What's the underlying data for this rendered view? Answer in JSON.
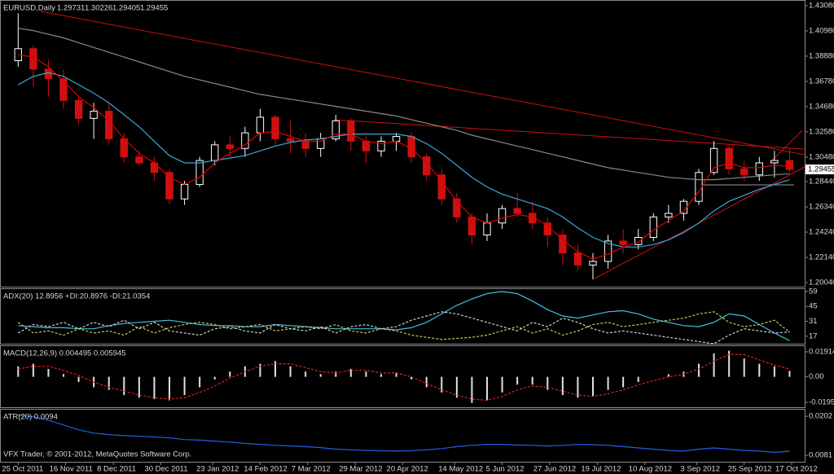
{
  "chart_data": [
    {
      "type": "candlestick",
      "title": "EURUSD,Daily",
      "last_bar": {
        "open": 1.29731,
        "high": 1.30226,
        "low": 1.29405,
        "close": 1.29455
      },
      "open": [
        1.385,
        1.395,
        1.378,
        1.37,
        1.352,
        1.337,
        1.343,
        1.32,
        1.305,
        1.3,
        1.292,
        1.27,
        1.282,
        1.302,
        1.315,
        1.312,
        1.325,
        1.338,
        1.32,
        1.318,
        1.312,
        1.32,
        1.335,
        1.318,
        1.31,
        1.318,
        1.322,
        1.305,
        1.29,
        1.27,
        1.255,
        1.24,
        1.25,
        1.262,
        1.258,
        1.25,
        1.24,
        1.225,
        1.215,
        1.218,
        1.235,
        1.232,
        1.238,
        1.255,
        1.258,
        1.268,
        1.292,
        1.312,
        1.295,
        1.29,
        1.3,
        1.302
      ],
      "high": [
        1.4245,
        1.398,
        1.386,
        1.378,
        1.355,
        1.35,
        1.35,
        1.325,
        1.31,
        1.305,
        1.295,
        1.285,
        1.305,
        1.318,
        1.322,
        1.33,
        1.345,
        1.34,
        1.335,
        1.325,
        1.325,
        1.34,
        1.337,
        1.322,
        1.322,
        1.325,
        1.325,
        1.308,
        1.295,
        1.275,
        1.258,
        1.258,
        1.265,
        1.275,
        1.268,
        1.255,
        1.245,
        1.232,
        1.225,
        1.24,
        1.245,
        1.245,
        1.258,
        1.265,
        1.27,
        1.295,
        1.318,
        1.315,
        1.302,
        1.305,
        1.31,
        1.312
      ],
      "low": [
        1.38,
        1.363,
        1.355,
        1.345,
        1.332,
        1.32,
        1.315,
        1.3,
        1.298,
        1.285,
        1.266,
        1.265,
        1.28,
        1.298,
        1.305,
        1.305,
        1.318,
        1.315,
        1.308,
        1.305,
        1.305,
        1.318,
        1.31,
        1.3,
        1.305,
        1.31,
        1.3,
        1.285,
        1.265,
        1.25,
        1.232,
        1.235,
        1.245,
        1.255,
        1.245,
        1.23,
        1.215,
        1.21,
        1.203,
        1.212,
        1.225,
        1.228,
        1.235,
        1.25,
        1.252,
        1.265,
        1.29,
        1.29,
        1.285,
        1.285,
        1.288,
        1.292
      ],
      "close": [
        1.395,
        1.378,
        1.37,
        1.352,
        1.337,
        1.343,
        1.32,
        1.305,
        1.3,
        1.292,
        1.27,
        1.282,
        1.302,
        1.315,
        1.312,
        1.325,
        1.338,
        1.32,
        1.318,
        1.312,
        1.32,
        1.335,
        1.318,
        1.31,
        1.318,
        1.322,
        1.305,
        1.29,
        1.27,
        1.255,
        1.24,
        1.25,
        1.262,
        1.258,
        1.25,
        1.24,
        1.225,
        1.215,
        1.218,
        1.235,
        1.232,
        1.238,
        1.255,
        1.258,
        1.268,
        1.292,
        1.312,
        1.295,
        1.29,
        1.3,
        1.302,
        1.29455
      ],
      "up_color": "#ffffff",
      "down_color": "#d01010",
      "series": [
        {
          "color": "#8a8a8a",
          "style": "line",
          "values": [
            1.412,
            1.41,
            1.407,
            1.404,
            1.4,
            1.396,
            1.392,
            1.388,
            1.384,
            1.38,
            1.376,
            1.372,
            1.369,
            1.366,
            1.363,
            1.36,
            1.357,
            1.355,
            1.353,
            1.351,
            1.349,
            1.347,
            1.345,
            1.343,
            1.341,
            1.339,
            1.336,
            1.333,
            1.33,
            1.327,
            1.323,
            1.32,
            1.317,
            1.314,
            1.311,
            1.308,
            1.305,
            1.302,
            1.299,
            1.296,
            1.294,
            1.292,
            1.29,
            1.288,
            1.287,
            1.286,
            1.286,
            1.287,
            1.288,
            1.289,
            1.29,
            1.291
          ]
        },
        {
          "color": "#3aa7d8",
          "style": "line",
          "values": [
            1.365,
            1.372,
            1.375,
            1.372,
            1.365,
            1.358,
            1.35,
            1.34,
            1.33,
            1.318,
            1.306,
            1.3,
            1.3,
            1.302,
            1.304,
            1.306,
            1.31,
            1.314,
            1.317,
            1.319,
            1.32,
            1.322,
            1.324,
            1.324,
            1.324,
            1.324,
            1.322,
            1.316,
            1.308,
            1.298,
            1.288,
            1.28,
            1.274,
            1.27,
            1.266,
            1.262,
            1.255,
            1.246,
            1.238,
            1.233,
            1.23,
            1.23,
            1.232,
            1.236,
            1.242,
            1.25,
            1.26,
            1.268,
            1.273,
            1.278,
            1.282,
            1.286
          ]
        },
        {
          "color": "#e00000",
          "style": "line",
          "values": [
            1.39,
            1.388,
            1.38,
            1.368,
            1.355,
            1.346,
            1.335,
            1.32,
            1.308,
            1.3,
            1.288,
            1.282,
            1.288,
            1.3,
            1.308,
            1.315,
            1.325,
            1.326,
            1.322,
            1.318,
            1.318,
            1.324,
            1.324,
            1.318,
            1.316,
            1.318,
            1.312,
            1.3,
            1.285,
            1.268,
            1.255,
            1.25,
            1.254,
            1.257,
            1.255,
            1.248,
            1.236,
            1.226,
            1.22,
            1.224,
            1.23,
            1.234,
            1.244,
            1.252,
            1.26,
            1.276,
            1.296,
            1.3,
            1.296,
            1.296,
            1.298,
            1.297
          ]
        }
      ],
      "ylim": [
        1.197,
        1.4355
      ],
      "yticks": [
        {
          "value": 1.4308,
          "label": "1.43080"
        },
        {
          "value": 1.4098,
          "label": "1.40980"
        },
        {
          "value": 1.3888,
          "label": "1.38880"
        },
        {
          "value": 1.3678,
          "label": "1.36780"
        },
        {
          "value": 1.3468,
          "label": "1.34680"
        },
        {
          "value": 1.3258,
          "label": "1.32580"
        },
        {
          "value": 1.3048,
          "label": "1.30480"
        },
        {
          "value": 1.2844,
          "label": "1.28440"
        },
        {
          "value": 1.2634,
          "label": "1.26340"
        },
        {
          "value": 1.2424,
          "label": "1.24240"
        },
        {
          "value": 1.2214,
          "label": "1.22140"
        },
        {
          "value": 1.2004,
          "label": "1.20040"
        }
      ],
      "xlim": [
        -1.2,
        52
      ],
      "xticks": [
        {
          "value": 0,
          "label": "25 Oct 2011"
        },
        {
          "value": 3.14,
          "label": "16 Nov 2011"
        },
        {
          "value": 6.29,
          "label": "8 Dec 2011"
        },
        {
          "value": 9.43,
          "label": "30 Dec 2011"
        },
        {
          "value": 12.86,
          "label": "23 Jan 2012"
        },
        {
          "value": 16,
          "label": "14 Feb 2012"
        },
        {
          "value": 19.14,
          "label": "7 Mar 2012"
        },
        {
          "value": 22.29,
          "label": "29 Mar 2012"
        },
        {
          "value": 25.43,
          "label": "20 Apr 2012"
        },
        {
          "value": 28.86,
          "label": "14 May 2012"
        },
        {
          "value": 32,
          "label": "5 Jun 2012"
        },
        {
          "value": 35.14,
          "label": "27 Jun 2012"
        },
        {
          "value": 38.29,
          "label": "19 Jul 2012"
        },
        {
          "value": 41.43,
          "label": "10 Aug 2012"
        },
        {
          "value": 44.86,
          "label": "3 Sep 2012"
        },
        {
          "value": 48,
          "label": "25 Sep 2012"
        },
        {
          "value": 51.14,
          "label": "17 Oct 2012"
        }
      ]
    },
    {
      "type": "indicator",
      "title": "ADX(20) 12.8956 +DI:20.8976 -DI:21.0354",
      "series": [
        {
          "color": "#40c0e0",
          "style": "line",
          "values": [
            27,
            26,
            25,
            25,
            24,
            24,
            27,
            29,
            30,
            31,
            32,
            30,
            28,
            27,
            27,
            26,
            26,
            28,
            27,
            26,
            25,
            24,
            24,
            24,
            24,
            23,
            25,
            30,
            38,
            46,
            52,
            57,
            59,
            57,
            50,
            42,
            36,
            34,
            37,
            40,
            41,
            38,
            33,
            30,
            27,
            26,
            30,
            38,
            36,
            28,
            20,
            12.8956
          ]
        },
        {
          "color": "#c8c850",
          "style": "dashed",
          "values": [
            30,
            20,
            22,
            18,
            24,
            20,
            22,
            18,
            26,
            20,
            25,
            28,
            30,
            28,
            24,
            26,
            28,
            22,
            24,
            26,
            24,
            28,
            22,
            20,
            24,
            22,
            18,
            16,
            14,
            15,
            16,
            18,
            22,
            26,
            20,
            24,
            18,
            22,
            28,
            30,
            26,
            28,
            30,
            32,
            34,
            38,
            40,
            30,
            26,
            28,
            32,
            20.8976
          ]
        },
        {
          "color": "#d0d0d0",
          "style": "dashed",
          "values": [
            20,
            28,
            26,
            30,
            24,
            30,
            26,
            32,
            24,
            30,
            22,
            20,
            18,
            24,
            26,
            22,
            20,
            28,
            24,
            22,
            26,
            20,
            26,
            28,
            24,
            26,
            32,
            36,
            40,
            38,
            34,
            30,
            26,
            22,
            30,
            26,
            34,
            30,
            24,
            20,
            22,
            20,
            18,
            16,
            14,
            12,
            10,
            18,
            24,
            22,
            20,
            21.0354
          ]
        }
      ],
      "ylim": [
        10,
        62
      ],
      "yticks": [
        59,
        45,
        31,
        17
      ]
    },
    {
      "type": "indicator",
      "title": "MACD(12,26,9) 0.004495 0.005945",
      "series": [
        {
          "color": "#e0e0e0",
          "style": "histogram",
          "values": [
            0.008,
            0.01,
            0.006,
            0.002,
            -0.004,
            -0.008,
            -0.01,
            -0.014,
            -0.016,
            -0.017,
            -0.018,
            -0.014,
            -0.008,
            -0.002,
            0.004,
            0.008,
            0.01,
            0.012,
            0.008,
            0.004,
            0.002,
            0.004,
            0.006,
            0.004,
            0.002,
            0.003,
            -0.002,
            -0.008,
            -0.012,
            -0.016,
            -0.02,
            -0.018,
            -0.012,
            -0.006,
            -0.006,
            -0.01,
            -0.014,
            -0.016,
            -0.015,
            -0.01,
            -0.008,
            -0.004,
            0,
            0.002,
            0.004,
            0.01,
            0.018,
            0.02,
            0.014,
            0.01,
            0.008,
            0.004495
          ]
        },
        {
          "color": "#e02020",
          "style": "dashed",
          "values": [
            0.006,
            0.008,
            0.008,
            0.005,
            0.001,
            -0.004,
            -0.008,
            -0.011,
            -0.014,
            -0.016,
            -0.017,
            -0.016,
            -0.012,
            -0.007,
            -0.001,
            0.004,
            0.008,
            0.01,
            0.01,
            0.007,
            0.004,
            0.003,
            0.005,
            0.005,
            0.003,
            0.003,
            0,
            -0.005,
            -0.01,
            -0.014,
            -0.017,
            -0.018,
            -0.015,
            -0.01,
            -0.007,
            -0.008,
            -0.011,
            -0.014,
            -0.015,
            -0.013,
            -0.01,
            -0.006,
            -0.003,
            0,
            0.002,
            0.006,
            0.012,
            0.017,
            0.017,
            0.013,
            0.009,
            0.005945
          ]
        }
      ],
      "ylim": [
        -0.0233,
        0.02413
      ],
      "yticks": [
        0.01914,
        {
          "value": 0,
          "label": "0.00"
        },
        -0.01955
      ]
    },
    {
      "type": "indicator",
      "title": "ATR(20) 0.0094",
      "series": [
        {
          "color": "#2060e0",
          "style": "line",
          "values": [
            0.0205,
            0.02,
            0.019,
            0.0175,
            0.016,
            0.015,
            0.0145,
            0.0142,
            0.014,
            0.0138,
            0.0135,
            0.013,
            0.0128,
            0.0125,
            0.0122,
            0.0118,
            0.0115,
            0.0112,
            0.011,
            0.0108,
            0.0105,
            0.01,
            0.0098,
            0.0096,
            0.0095,
            0.0094,
            0.0095,
            0.0098,
            0.0102,
            0.0108,
            0.0112,
            0.0115,
            0.0115,
            0.0113,
            0.0112,
            0.011,
            0.0112,
            0.0115,
            0.0114,
            0.0112,
            0.0108,
            0.0104,
            0.01,
            0.0096,
            0.0094,
            0.01,
            0.0104,
            0.01,
            0.0096,
            0.0094,
            0.009,
            0.0094
          ]
        }
      ],
      "ylim": [
        0.0061,
        0.0225
      ],
      "yticks": [
        0.0202,
        0.0081
      ]
    }
  ],
  "footer": "VFX Trader, © 2001-2012, MetaQuotes Software Corp."
}
